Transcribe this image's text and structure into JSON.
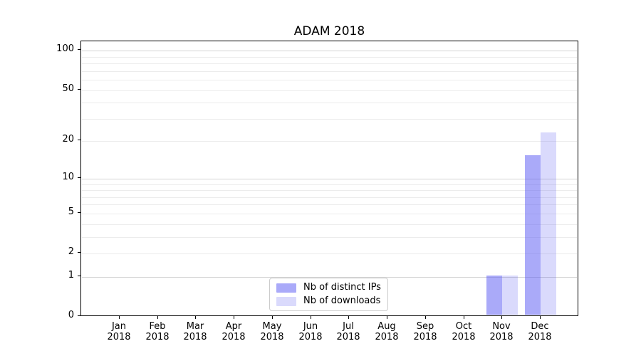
{
  "chart_data": {
    "type": "bar",
    "title": "ADAM 2018",
    "categories": [
      "Jan 2018",
      "Feb 2018",
      "Mar 2018",
      "Apr 2018",
      "May 2018",
      "Jun 2018",
      "Jul 2018",
      "Aug 2018",
      "Sep 2018",
      "Oct 2018",
      "Nov 2018",
      "Dec 2018"
    ],
    "series": [
      {
        "name": "Nb of distinct IPs",
        "values": [
          0,
          0,
          0,
          0,
          0,
          0,
          0,
          0,
          0,
          0,
          1,
          15
        ],
        "color_base": "#5555f3",
        "alpha": 0.5,
        "color_apparent": "#aaaaf9"
      },
      {
        "name": "Nb of downloads",
        "values": [
          0,
          0,
          0,
          0,
          0,
          0,
          0,
          0,
          0,
          0,
          1,
          23
        ],
        "color_base": "#5555f3",
        "alpha": 0.22,
        "color_apparent": "#d9d9fb"
      }
    ],
    "xlabel": "",
    "ylabel": "",
    "yscale": "log1p",
    "ylim": [
      0,
      118
    ],
    "ytick_values": [
      0,
      1,
      2,
      5,
      10,
      20,
      50,
      100
    ],
    "ytick_labels": [
      "0",
      "1",
      "2",
      "5",
      "10",
      "20",
      "50",
      "100"
    ],
    "major_gridline_values": [
      1,
      10,
      100
    ],
    "minor_gridline_values": [
      2,
      3,
      4,
      5,
      6,
      7,
      8,
      9,
      20,
      30,
      40,
      50,
      60,
      70,
      80,
      90
    ],
    "grid": "horizontal, axisbelow",
    "legend_position": "lower center",
    "colors": {
      "major_grid": "#d4d4d4",
      "minor_grid": "#ececec",
      "axis_spine": "#000000",
      "legend_border": "#cccccc",
      "background": "#ffffff",
      "text": "#000000"
    }
  }
}
